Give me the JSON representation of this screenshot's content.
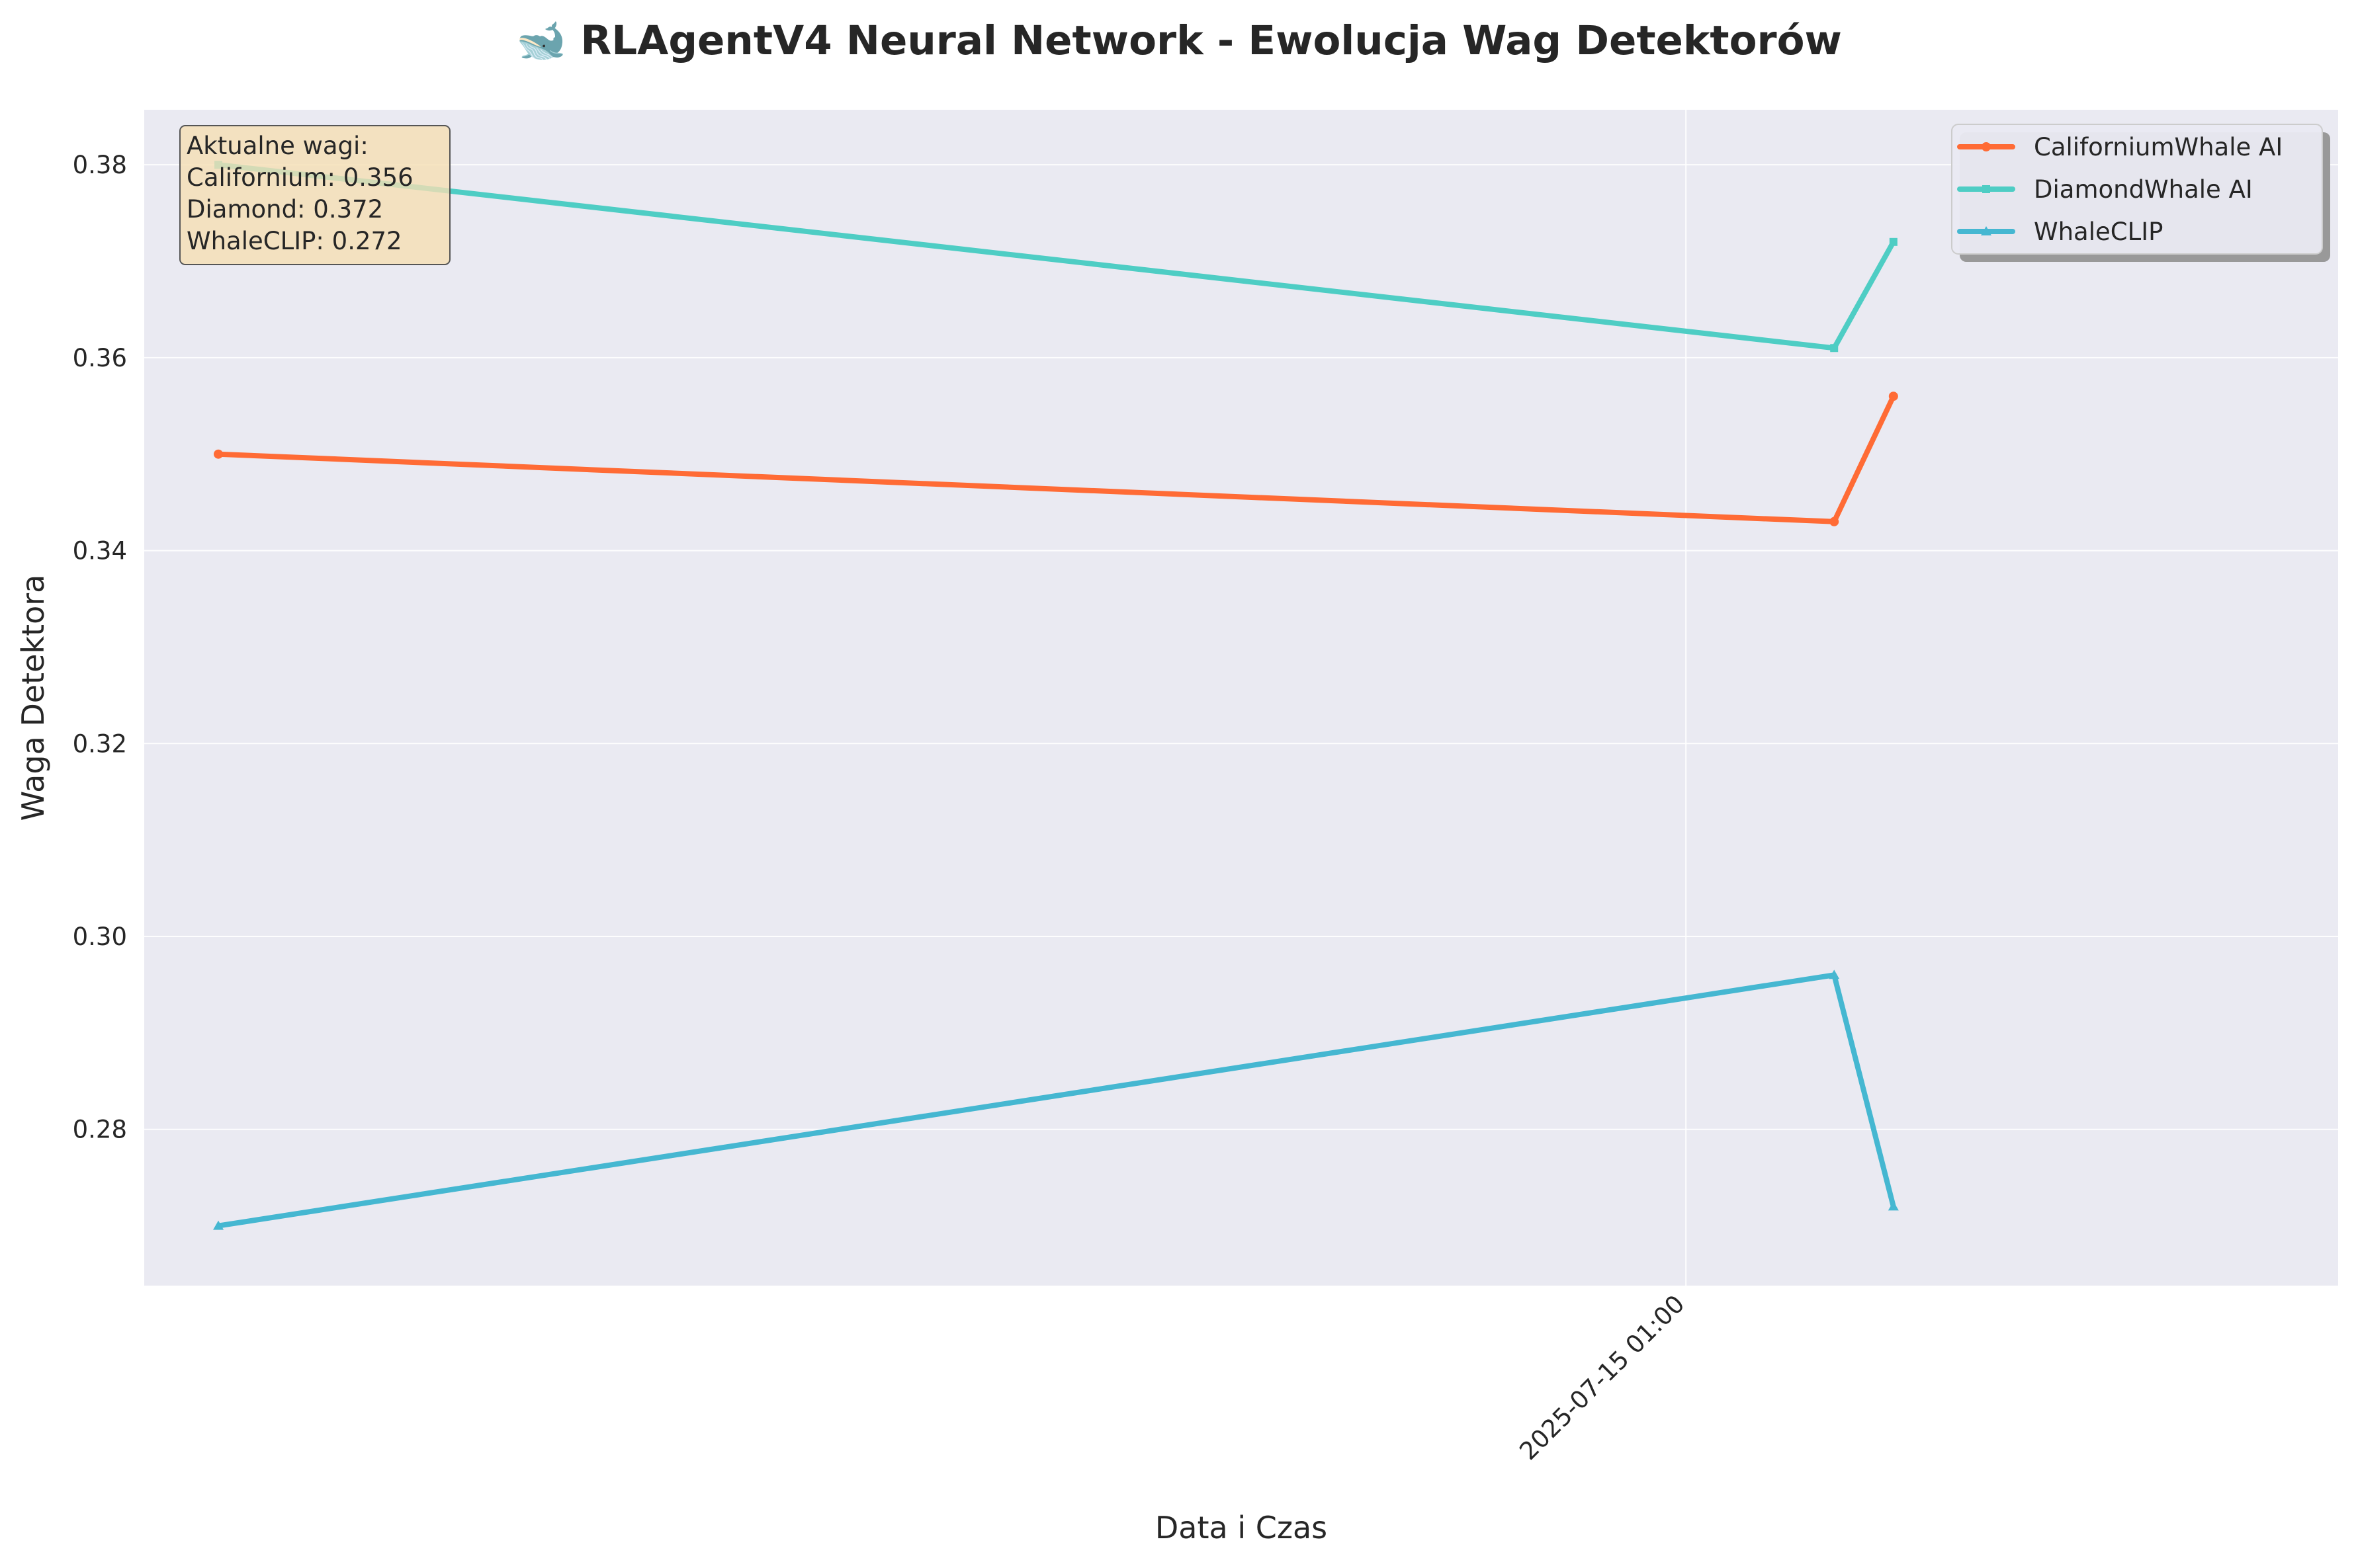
{
  "chart_data": {
    "type": "line",
    "title": "🐋 RLAgentV4 Neural Network - Ewolucja Wag Detektorów",
    "xlabel": "Data i Czas",
    "ylabel": "Waga Detektora",
    "ylim": [
      0.2638,
      0.3857
    ],
    "yticks": [
      0.28,
      0.3,
      0.32,
      0.34,
      0.36,
      0.38
    ],
    "ytick_labels": [
      "0.28",
      "0.30",
      "0.32",
      "0.34",
      "0.36",
      "0.38"
    ],
    "xticks": [
      {
        "x": "2025-07-15 01:00",
        "label": "2025-07-15 01:00"
      }
    ],
    "x_time_range": [
      "2025-07-14 23:16",
      "2025-07-15 01:44"
    ],
    "grid": true,
    "legend_position": "top-right",
    "series": [
      {
        "name": "CaliforniumWhale AI",
        "color": "#ff6b35",
        "marker": "circle",
        "x": [
          "2025-07-14 23:21",
          "2025-07-15 01:10",
          "2025-07-15 01:14"
        ],
        "y": [
          0.35,
          0.343,
          0.356
        ]
      },
      {
        "name": "DiamondWhale AI",
        "color": "#4ecdc4",
        "marker": "square",
        "x": [
          "2025-07-14 23:21",
          "2025-07-15 01:10",
          "2025-07-15 01:14"
        ],
        "y": [
          0.38,
          0.361,
          0.372
        ]
      },
      {
        "name": "WhaleCLIP",
        "color": "#45b7d1",
        "marker": "triangle",
        "x": [
          "2025-07-14 23:21",
          "2025-07-15 01:10",
          "2025-07-15 01:14"
        ],
        "y": [
          0.27,
          0.296,
          0.272
        ]
      }
    ],
    "annotation": {
      "lines": [
        "Aktualne wagi:",
        "Californium: 0.356",
        "Diamond: 0.372",
        "WhaleCLIP: 0.272"
      ]
    }
  }
}
